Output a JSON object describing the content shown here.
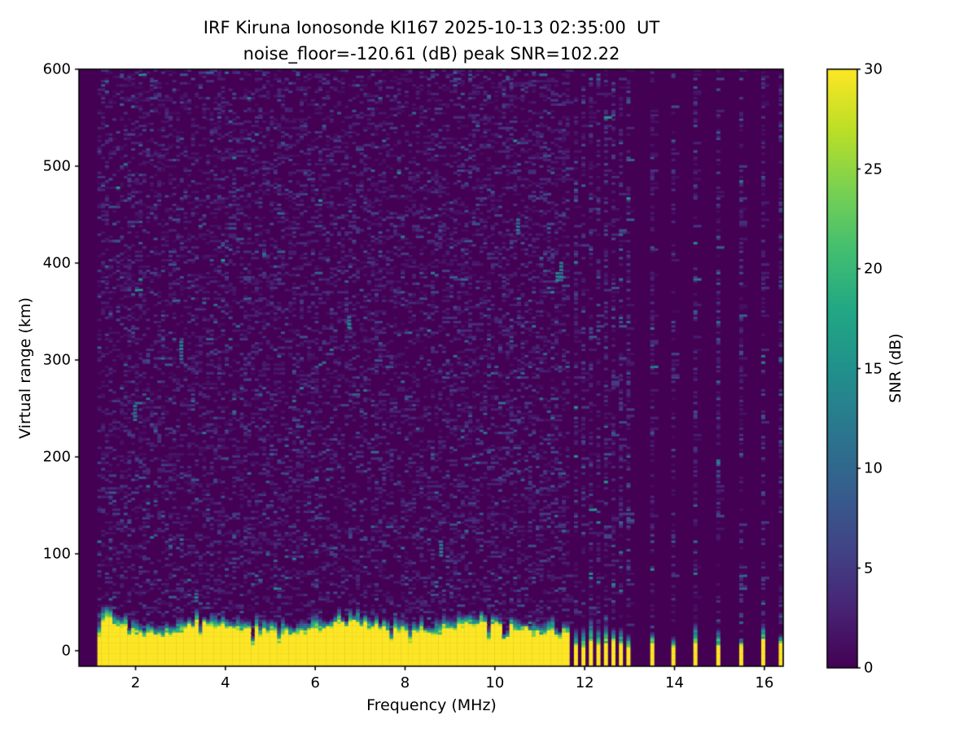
{
  "chart_data": {
    "type": "heatmap",
    "title": "IRF Kiruna Ionosonde KI167 2025-10-13 02:35:00  UT",
    "subtitle": "noise_floor=-120.61 (dB) peak SNR=102.22",
    "station": "KI167",
    "timestamp_ut": "2025-10-13 02:35:00",
    "noise_floor_db": -120.61,
    "peak_snr_db": 102.22,
    "xlabel": "Frequency (MHz)",
    "ylabel": "Virtual range (km)",
    "xlim": [
      0.74,
      16.42
    ],
    "ylim": [
      -16,
      600
    ],
    "x_ticks": [
      2,
      4,
      6,
      8,
      10,
      12,
      14,
      16
    ],
    "y_ticks": [
      0,
      100,
      200,
      300,
      400,
      500,
      600
    ],
    "grid": false,
    "colormap": "viridis",
    "colormap_stops": [
      [
        0.0,
        "#440154"
      ],
      [
        0.1,
        "#482475"
      ],
      [
        0.2,
        "#414487"
      ],
      [
        0.3,
        "#355f8d"
      ],
      [
        0.4,
        "#2a788e"
      ],
      [
        0.5,
        "#21918c"
      ],
      [
        0.6,
        "#22a884"
      ],
      [
        0.7,
        "#44bf70"
      ],
      [
        0.8,
        "#7ad151"
      ],
      [
        0.9,
        "#bddf26"
      ],
      [
        1.0,
        "#fde725"
      ]
    ],
    "colorbar": {
      "label": "SNR (dB)",
      "vmin": 0,
      "vmax": 30,
      "ticks": [
        0,
        5,
        10,
        15,
        20,
        25,
        30
      ],
      "position": "right"
    },
    "sweep": {
      "continuous": {
        "f_start_mhz": 1.15,
        "f_end_mhz": 11.64,
        "f_step_mhz": 0.0834
      },
      "dense_discrete": {
        "f_start_mhz": 11.76,
        "f_end_mhz": 12.94,
        "f_step_mhz": 0.167
      },
      "sparse_discrete_mhz": [
        13.46,
        13.93,
        14.42,
        14.93,
        15.44,
        15.93,
        16.32
      ]
    },
    "ground_echo": {
      "snr_db_saturated": 30,
      "saturated_top_km_typical": 22,
      "cap_top_km_typical": 34,
      "low_freq_extra_km": 10,
      "discrete_saturated_top_km_typical": 5,
      "discrete_cap_top_km_typical": 22
    },
    "noise": {
      "speckle_fraction_continuous": 0.38,
      "speckle_fraction_discrete": 0.5,
      "typical_snr_db_range": [
        1,
        8
      ],
      "max_speckle_snr_db": 16
    },
    "colors": {
      "figure_background": "#ffffff",
      "plot_background": "#440154",
      "saturation_color": "#fde725",
      "text": "#000000"
    }
  }
}
